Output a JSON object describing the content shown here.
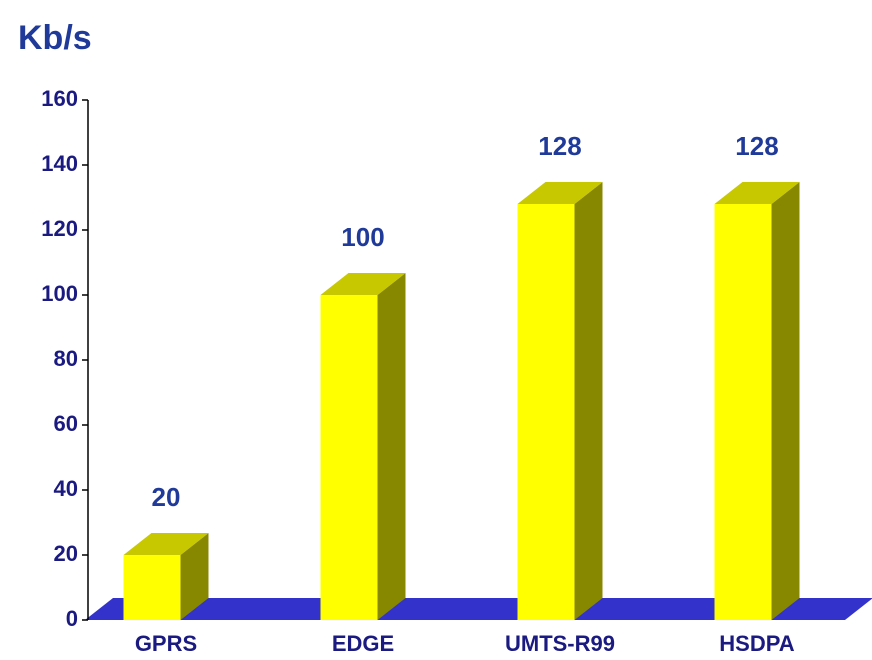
{
  "chart_data": {
    "type": "bar",
    "title": "Kb/s",
    "categories": [
      "GPRS",
      "EDGE",
      "UMTS-R99",
      "HSDPA"
    ],
    "values": [
      20,
      100,
      128,
      128
    ],
    "color": "#ffff00",
    "floor_color": "#3333cc",
    "ylim": [
      0,
      160
    ],
    "yticks": [
      0,
      20,
      40,
      60,
      80,
      100,
      120,
      140,
      160
    ]
  }
}
